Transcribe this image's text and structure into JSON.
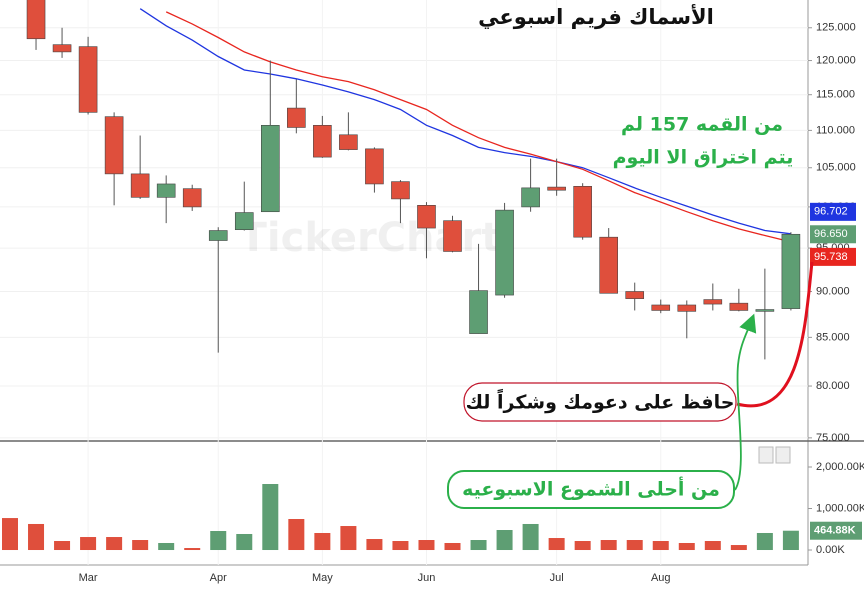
{
  "chart_data": {
    "type": "candlestick",
    "title": "الأسماك فريم اسبوعي",
    "annotations": [
      "من القمه 157 لم",
      "يتم اختراق الا اليوم",
      "حافظ على دعومك وشكراً لك",
      "من أحلى الشموع الاسبوعيه"
    ],
    "watermark": "TickerChart",
    "categories": [
      null,
      null,
      null,
      "Mar",
      null,
      null,
      null,
      null,
      "Apr",
      null,
      null,
      null,
      "May",
      null,
      null,
      null,
      "Jun",
      null,
      null,
      null,
      null,
      "Jul",
      null,
      null,
      null,
      "Aug",
      null,
      null,
      null,
      null,
      null
    ],
    "log_scale": true,
    "grid": true,
    "ylim": [
      74.8,
      129.4
    ],
    "yticks": [
      {
        "value": 75,
        "label": "75.000"
      },
      {
        "value": 80,
        "label": "80.000"
      },
      {
        "value": 85,
        "label": "85.000"
      },
      {
        "value": 90,
        "label": "90.000"
      },
      {
        "value": 95,
        "label": "95.000"
      },
      {
        "value": 100,
        "label": "100.000"
      },
      {
        "value": 105,
        "label": "105.000"
      },
      {
        "value": 110,
        "label": "110.000"
      },
      {
        "value": 115,
        "label": "115.000"
      },
      {
        "value": 120,
        "label": "120.000"
      },
      {
        "value": 125,
        "label": "125.000"
      }
    ],
    "up_color": "#5e9e73",
    "down_color": "#df4f3c",
    "open": [
      null,
      130.5,
      122.4,
      122.1,
      111.9,
      104.2,
      101.2,
      102.3,
      95.9,
      97.2,
      99.4,
      113.1,
      110.7,
      109.4,
      107.5,
      103.2,
      100.2,
      98.3,
      85.4,
      89.6,
      100.0,
      102.5,
      102.6,
      96.3,
      90.0,
      88.5,
      88.5,
      89.1,
      88.7,
      87.8,
      88.1
    ],
    "high": [
      null,
      132.0,
      125.0,
      123.6,
      112.5,
      109.3,
      104.0,
      102.8,
      97.5,
      103.2,
      120.0,
      117.2,
      112.0,
      112.5,
      107.7,
      103.4,
      100.6,
      98.9,
      95.5,
      100.5,
      106.2,
      106.2,
      103.0,
      97.4,
      91.0,
      89.1,
      89.0,
      90.9,
      90.3,
      92.6,
      96.9
    ],
    "low": [
      null,
      121.6,
      120.4,
      112.2,
      100.2,
      101.0,
      98.0,
      99.5,
      83.4,
      97.1,
      99.4,
      109.6,
      106.3,
      107.3,
      101.8,
      98.0,
      93.8,
      94.5,
      85.4,
      89.3,
      99.4,
      101.4,
      96.0,
      89.8,
      87.9,
      87.6,
      84.9,
      87.9,
      87.8,
      82.7,
      87.9
    ],
    "close": [
      null,
      123.3,
      121.3,
      112.5,
      104.2,
      101.2,
      102.9,
      100.0,
      97.1,
      99.3,
      110.7,
      110.4,
      106.4,
      107.4,
      102.9,
      101.0,
      97.4,
      94.6,
      90.1,
      99.6,
      102.4,
      102.1,
      96.3,
      89.8,
      89.2,
      87.9,
      87.8,
      88.6,
      87.9,
      88.0,
      96.65
    ],
    "close_labels": [
      null,
      null,
      null,
      null,
      null,
      null,
      null,
      null,
      null,
      null,
      null,
      null,
      null,
      null,
      null,
      null,
      null,
      null,
      null,
      null,
      null,
      null,
      null,
      null,
      null,
      null,
      null,
      null,
      null,
      null,
      "96.650"
    ],
    "series": [
      {
        "color": "#1f35e0",
        "values": [
          null,
          null,
          null,
          null,
          null,
          128.0,
          125.3,
          123.1,
          120.6,
          118.6,
          118.0,
          117.3,
          116.4,
          115.4,
          114.3,
          112.9,
          110.7,
          109.3,
          107.7,
          107.0,
          106.5,
          105.8,
          105.0,
          103.7,
          102.4,
          101.2,
          100.1,
          99.0,
          98.0,
          97.1,
          96.702
        ],
        "value_labels": [
          null,
          null,
          null,
          null,
          null,
          null,
          null,
          null,
          null,
          null,
          null,
          null,
          null,
          null,
          null,
          null,
          null,
          null,
          null,
          null,
          null,
          null,
          null,
          null,
          null,
          null,
          null,
          null,
          null,
          null,
          "96.702"
        ]
      },
      {
        "color": "#e8261f",
        "values": [
          null,
          null,
          null,
          null,
          null,
          null,
          127.5,
          125.6,
          123.5,
          121.3,
          119.8,
          118.6,
          117.6,
          116.9,
          115.7,
          114.3,
          112.9,
          110.7,
          109.0,
          107.7,
          106.8,
          105.8,
          104.8,
          103.3,
          101.8,
          100.6,
          99.4,
          98.3,
          97.3,
          96.5,
          95.738
        ],
        "value_labels": [
          null,
          null,
          null,
          null,
          null,
          null,
          null,
          null,
          null,
          null,
          null,
          null,
          null,
          null,
          null,
          null,
          null,
          null,
          null,
          null,
          null,
          null,
          null,
          null,
          null,
          null,
          null,
          null,
          null,
          null,
          "95.738"
        ]
      }
    ],
    "volume": {
      "ylim": [
        -361000,
        2602000
      ],
      "yticks": [
        {
          "value": 0,
          "label": "0.00K"
        },
        {
          "value": 1000000,
          "label": "1,000.00K"
        },
        {
          "value": 2000000,
          "label": "2,000.00K"
        }
      ],
      "values": [
        770000,
        627000,
        217000,
        313000,
        313000,
        241000,
        169000,
        48000,
        458000,
        386000,
        1590000,
        747000,
        410000,
        578000,
        265000,
        217000,
        241000,
        169000,
        241000,
        482000,
        627000,
        289000,
        217000,
        241000,
        241000,
        217000,
        169000,
        217000,
        120000,
        410000,
        464880
      ],
      "value_labels": [
        null,
        null,
        null,
        null,
        null,
        null,
        null,
        null,
        null,
        null,
        null,
        null,
        null,
        null,
        null,
        null,
        null,
        null,
        null,
        null,
        null,
        null,
        null,
        null,
        null,
        null,
        null,
        null,
        null,
        null,
        "464.88K"
      ],
      "colors": [
        "#df4f3c",
        "#df4f3c",
        "#df4f3c",
        "#df4f3c",
        "#df4f3c",
        "#df4f3c",
        "#5e9e73",
        "#df4f3c",
        "#5e9e73",
        "#5e9e73",
        "#5e9e73",
        "#df4f3c",
        "#df4f3c",
        "#df4f3c",
        "#df4f3c",
        "#df4f3c",
        "#df4f3c",
        "#df4f3c",
        "#5e9e73",
        "#5e9e73",
        "#5e9e73",
        "#df4f3c",
        "#df4f3c",
        "#df4f3c",
        "#df4f3c",
        "#df4f3c",
        "#df4f3c",
        "#df4f3c",
        "#df4f3c",
        "#5e9e73",
        "#5e9e73"
      ]
    }
  }
}
